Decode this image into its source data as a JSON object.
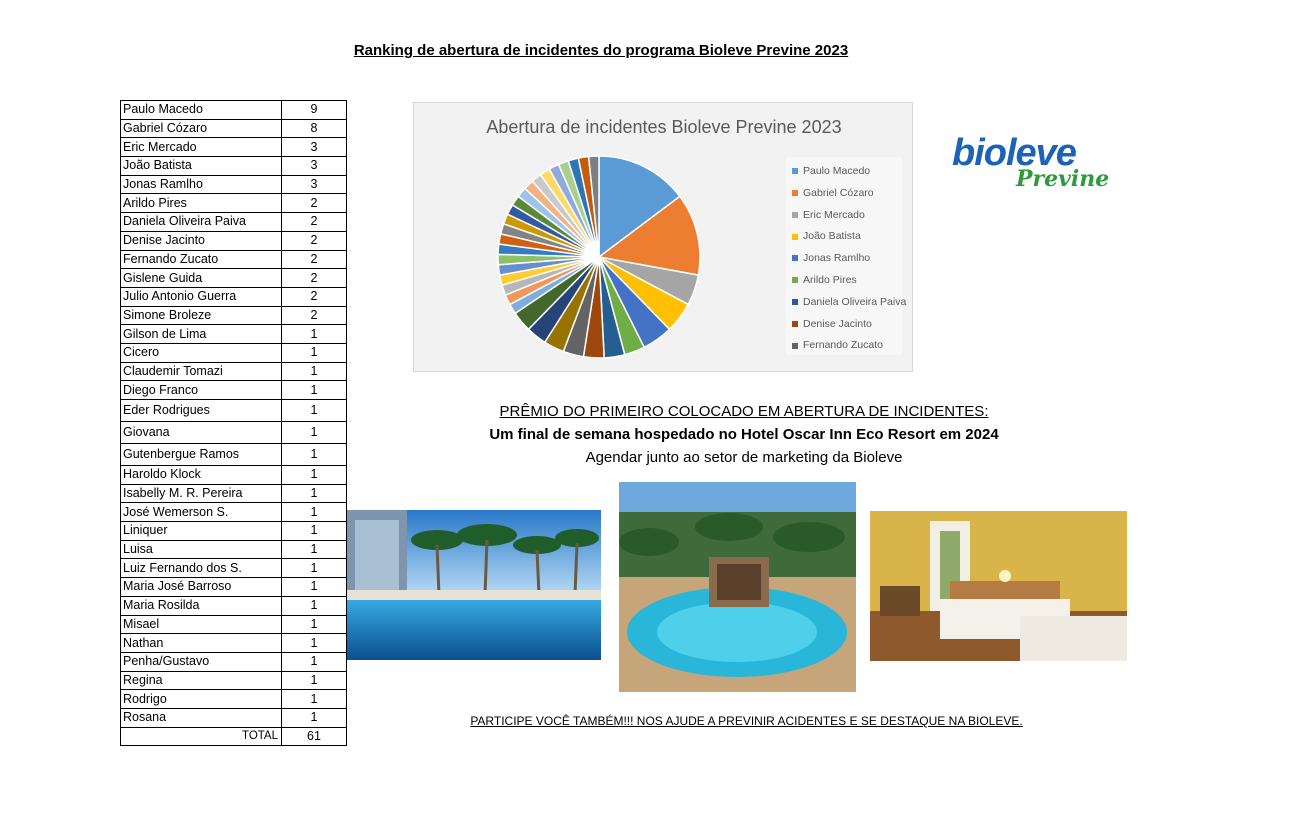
{
  "title": "Ranking de abertura de incidentes do programa Bioleve Previne 2023",
  "ranking": [
    {
      "name": "Paulo Macedo",
      "value": "9"
    },
    {
      "name": "Gabriel Cózaro",
      "value": "8"
    },
    {
      "name": "Eric Mercado",
      "value": "3"
    },
    {
      "name": "João Batista",
      "value": "3"
    },
    {
      "name": "Jonas Ramlho",
      "value": "3"
    },
    {
      "name": "Arildo Pires",
      "value": "2"
    },
    {
      "name": "Daniela Oliveira Paiva",
      "value": "2"
    },
    {
      "name": "Denise Jacinto",
      "value": "2"
    },
    {
      "name": "Fernando Zucato",
      "value": "2"
    },
    {
      "name": "Gislene Guida",
      "value": "2"
    },
    {
      "name": "Julio Antonio Guerra",
      "value": "2"
    },
    {
      "name": "Simone Broleze",
      "value": "2"
    },
    {
      "name": "Gilson de Lima",
      "value": "1"
    },
    {
      "name": "Cicero",
      "value": "1"
    },
    {
      "name": "Claudemir Tomazi",
      "value": "1"
    },
    {
      "name": "Diego Franco",
      "value": "1"
    },
    {
      "name": "Eder Rodrigues",
      "value": "1"
    },
    {
      "name": "Giovana",
      "value": "1"
    },
    {
      "name": "Gutenbergue Ramos",
      "value": "1"
    },
    {
      "name": "Haroldo Klock",
      "value": "1"
    },
    {
      "name": "Isabelly M. R. Pereira",
      "value": "1"
    },
    {
      "name": "José Wemerson S.",
      "value": "1"
    },
    {
      "name": "Liniquer",
      "value": "1"
    },
    {
      "name": "Luisa",
      "value": "1"
    },
    {
      "name": "Luiz Fernando dos S.",
      "value": "1"
    },
    {
      "name": "Maria José Barroso",
      "value": "1"
    },
    {
      "name": "Maria Rosilda",
      "value": "1"
    },
    {
      "name": "Misael",
      "value": "1"
    },
    {
      "name": "Nathan",
      "value": "1"
    },
    {
      "name": "Penha/Gustavo",
      "value": "1"
    },
    {
      "name": "Regina",
      "value": "1"
    },
    {
      "name": "Rodrigo",
      "value": "1"
    },
    {
      "name": "Rosana",
      "value": "1"
    }
  ],
  "total_label": "TOTAL",
  "total_value": "61",
  "chart_data": {
    "type": "pie",
    "title": "Abertura de incidentes Bioleve Previne 2023",
    "categories": [
      "Paulo Macedo",
      "Gabriel Cózaro",
      "Eric Mercado",
      "João Batista",
      "Jonas Ramlho",
      "Arildo Pires",
      "Daniela Oliveira Paiva",
      "Denise Jacinto",
      "Fernando Zucato",
      "Gislene Guida",
      "Julio Antonio Guerra",
      "Simone Broleze",
      "Gilson de Lima",
      "Cicero",
      "Claudemir Tomazi",
      "Diego Franco",
      "Eder Rodrigues",
      "Giovana",
      "Gutenbergue Ramos",
      "Haroldo Klock",
      "Isabelly M. R. Pereira",
      "José Wemerson S.",
      "Liniquer",
      "Luisa",
      "Luiz Fernando dos S.",
      "Maria José Barroso",
      "Maria Rosilda",
      "Misael",
      "Nathan",
      "Penha/Gustavo",
      "Regina",
      "Rodrigo",
      "Rosana"
    ],
    "values": [
      9,
      8,
      3,
      3,
      3,
      2,
      2,
      2,
      2,
      2,
      2,
      2,
      1,
      1,
      1,
      1,
      1,
      1,
      1,
      1,
      1,
      1,
      1,
      1,
      1,
      1,
      1,
      1,
      1,
      1,
      1,
      1,
      1
    ],
    "legend_entries": [
      "Paulo Macedo",
      "Gabriel Cózaro",
      "Eric Mercado",
      "João Batista",
      "Jonas Ramlho",
      "Arildo Pires",
      "Daniela Oliveira Paiva",
      "Denise Jacinto",
      "Fernando Zucato"
    ],
    "legend_position": "right",
    "palette": [
      "#5b9bd5",
      "#ed7d31",
      "#a5a5a5",
      "#ffc000",
      "#4472c4",
      "#70ad47",
      "#255e91",
      "#9e480e",
      "#636363",
      "#997300",
      "#264478",
      "#43682b",
      "#7cafdd",
      "#f1975a",
      "#b7b7b7",
      "#ffcd33",
      "#698ed0",
      "#8cc168",
      "#327dc2",
      "#d26012",
      "#848484",
      "#cc9a00",
      "#335aa1",
      "#5a8a39",
      "#9dc3e6",
      "#f4b183",
      "#c9c9c9",
      "#ffd966",
      "#8faadc",
      "#a9d18e",
      "#2e75b6",
      "#c55a11",
      "#7f7f7f"
    ]
  },
  "logo": {
    "brand": "bioleve",
    "sub": "Previne"
  },
  "prize": {
    "heading": "PRÊMIO DO PRIMEIRO COLOCADO EM ABERTURA DE INCIDENTES:",
    "line1": "Um final de semana hospedado no Hotel Oscar Inn Eco Resort em 2024",
    "line2": "Agendar junto ao setor de marketing da Bioleve"
  },
  "footer": "PARTICIPE VOCÊ TAMBÉM!!! NOS AJUDE A PREVINIR ACIDENTES E SE DESTAQUE NA BIOLEVE."
}
